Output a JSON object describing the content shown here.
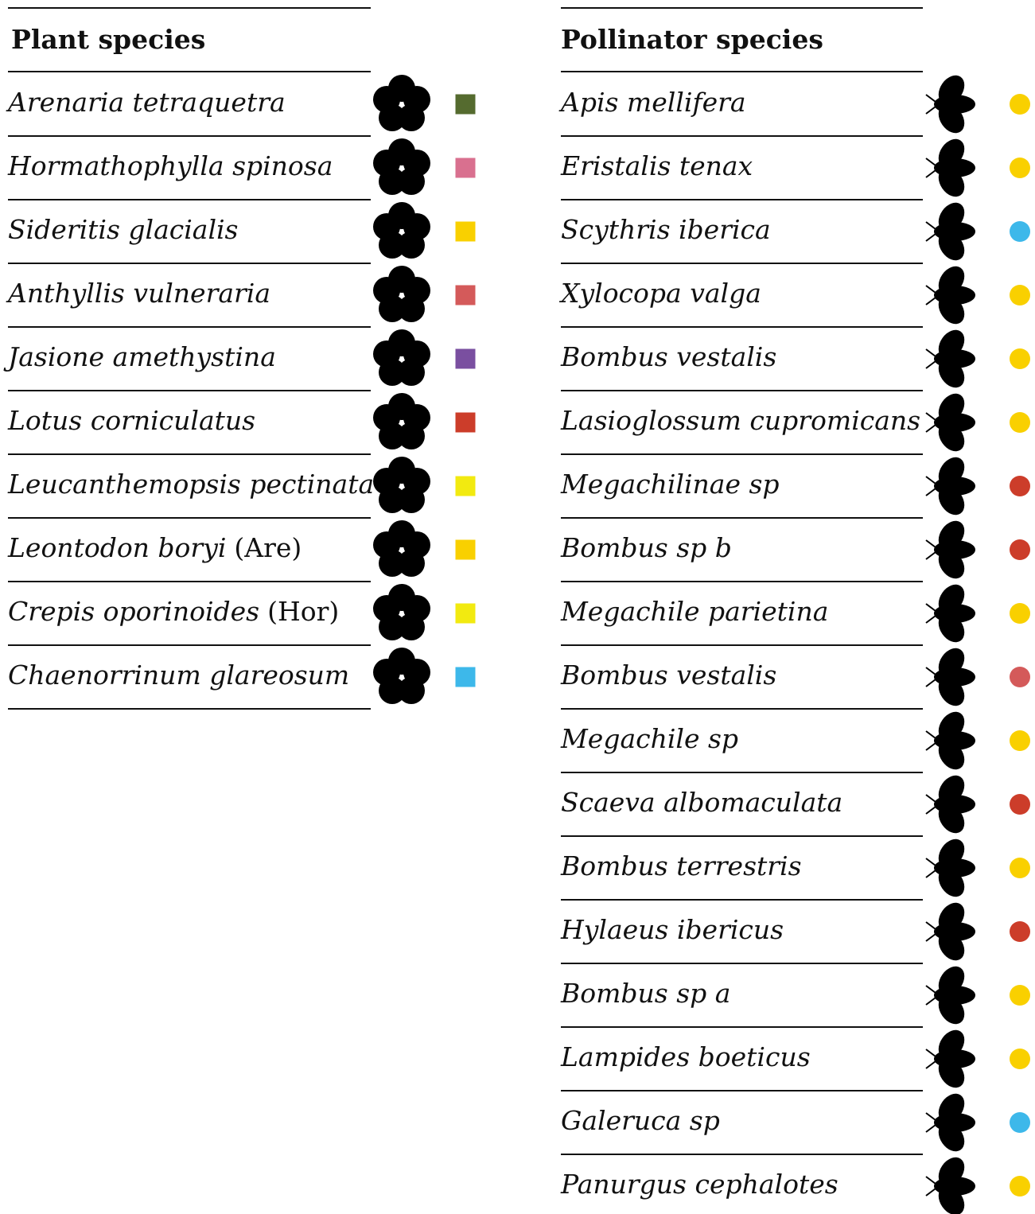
{
  "plants": {
    "title": "Plant species",
    "rows": [
      {
        "name": "Arenaria tetraquetra",
        "color": "#556b2f"
      },
      {
        "name": "Hormathophylla spinosa",
        "color": "#d9708f"
      },
      {
        "name": "Sideritis glacialis",
        "color": "#f9d000"
      },
      {
        "name": "Anthyllis vulneraria",
        "color": "#d45a5a"
      },
      {
        "name": "Jasione amethystina",
        "color": "#7a4fa0"
      },
      {
        "name": "Lotus corniculatus",
        "color": "#cc3d2a"
      },
      {
        "name": "Leucanthemopsis pectinata",
        "color": "#f2ea10"
      },
      {
        "name": "Leontodon boryi",
        "suffix": "(Are)",
        "color": "#f9d000"
      },
      {
        "name": "Crepis oporinoides",
        "suffix": "(Hor)",
        "color": "#f2ea10"
      },
      {
        "name": "Chaenorrinum glareosum",
        "color": "#3db8ea"
      }
    ]
  },
  "pollinators": {
    "title": "Pollinator species",
    "rows": [
      {
        "name": "Apis mellifera",
        "color": "#f9d000"
      },
      {
        "name": "Eristalis tenax",
        "color": "#f9d000"
      },
      {
        "name": "Scythris iberica",
        "color": "#3db8ea"
      },
      {
        "name": "Xylocopa valga",
        "color": "#f9d000"
      },
      {
        "name": "Bombus vestalis",
        "color": "#f9d000"
      },
      {
        "name": "Lasioglossum cupromicans",
        "color": "#f9d000"
      },
      {
        "name": "Megachilinae sp",
        "color": "#cc3d2a"
      },
      {
        "name": "Bombus sp b",
        "color": "#cc3d2a"
      },
      {
        "name": "Megachile parietina",
        "color": "#f9d000"
      },
      {
        "name": "Bombus vestalis",
        "color": "#d45a5a"
      },
      {
        "name": "Megachile sp",
        "color": "#f9d000"
      },
      {
        "name": "Scaeva albomaculata",
        "color": "#cc3d2a"
      },
      {
        "name": "Bombus terrestris",
        "color": "#f9d000"
      },
      {
        "name": "Hylaeus ibericus",
        "color": "#cc3d2a"
      },
      {
        "name": "Bombus sp a",
        "color": "#f9d000"
      },
      {
        "name": "Lampides boeticus",
        "color": "#f9d000"
      },
      {
        "name": "Galeruca sp",
        "color": "#3db8ea"
      },
      {
        "name": "Panurgus cephalotes",
        "color": "#f9d000"
      }
    ]
  }
}
